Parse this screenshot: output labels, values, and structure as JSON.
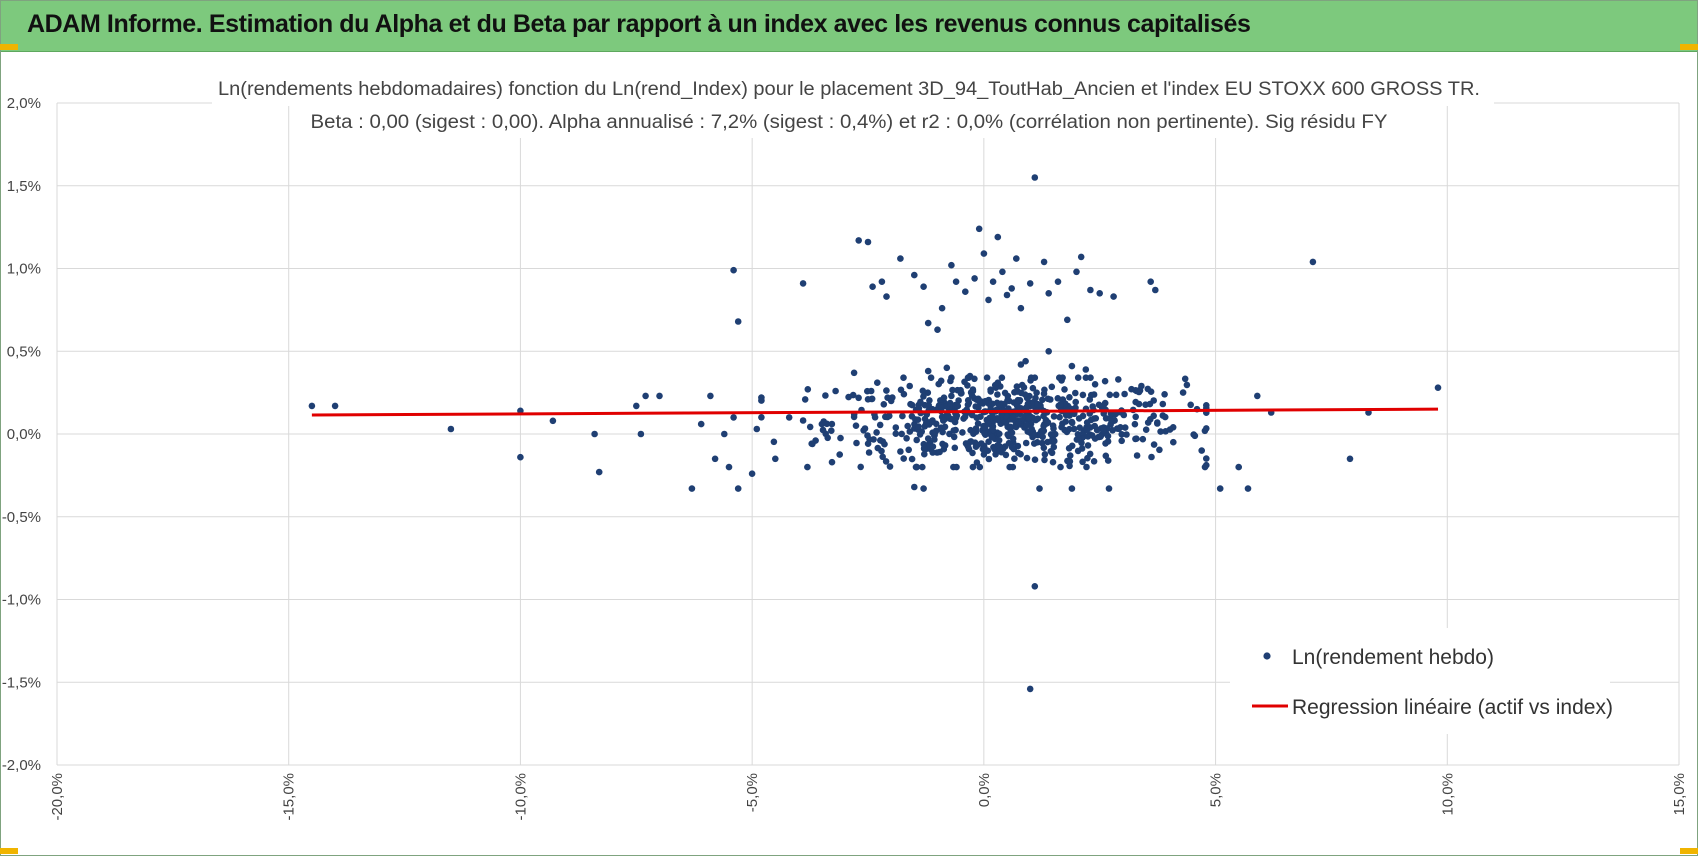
{
  "header": {
    "title": "ADAM Informe. Estimation du Alpha et du Beta par rapport à un index avec les revenus connus capitalisés"
  },
  "colors": {
    "title_bar": "#7dc97d",
    "point": "#1f3f73",
    "regression": "#e00000",
    "grid": "#d9d9d9",
    "corner": "#f0b400"
  },
  "chart_data": {
    "type": "scatter",
    "title_line1": "Ln(rendements hebdomadaires) fonction du Ln(rend_Index) pour le placement 3D_94_ToutHab_Ancien et l'index EU STOXX 600 GROSS TR.",
    "title_line2": "Beta : 0,00 (sigest : 0,00). Alpha annualisé : 7,2% (sigest : 0,4%) et r2 : 0,0% (corrélation non pertinente). Sig résidu FY",
    "xlim": [
      -20,
      15
    ],
    "ylim": [
      -2,
      2
    ],
    "x_ticks": [
      -20,
      -15,
      -10,
      -5,
      0,
      5,
      10,
      15
    ],
    "x_tick_labels": [
      "-20,0%",
      "-15,0%",
      "-10,0%",
      "-5,0%",
      "0,0%",
      "5,0%",
      "10,0%",
      "15,0%"
    ],
    "y_ticks": [
      2,
      1.5,
      1,
      0.5,
      0,
      -0.5,
      -1,
      -1.5,
      -2
    ],
    "y_tick_labels": [
      "2,0%",
      "1,5%",
      "1,0%",
      "0,5%",
      "0,0%",
      "-0,5%",
      "-1,0%",
      "-1,5%",
      "-2,0%"
    ],
    "legend": {
      "placement": "bottom-right",
      "scatter_label": "Ln(rendement hebdo)",
      "line_label": "Regression linéaire (actif vs index)"
    },
    "series": [
      {
        "name": "Ln(rendement hebdo)",
        "kind": "scatter",
        "points": [
          [
            -14.5,
            0.17
          ],
          [
            -14.0,
            0.17
          ],
          [
            -11.5,
            0.03
          ],
          [
            -10.0,
            -0.14
          ],
          [
            -10.0,
            0.14
          ],
          [
            -9.3,
            0.08
          ],
          [
            -8.4,
            0.0
          ],
          [
            -8.3,
            -0.23
          ],
          [
            -7.5,
            0.17
          ],
          [
            -7.4,
            0.0
          ],
          [
            -7.3,
            0.23
          ],
          [
            -7.0,
            0.23
          ],
          [
            -6.3,
            -0.33
          ],
          [
            -6.1,
            0.06
          ],
          [
            -5.9,
            0.23
          ],
          [
            -5.8,
            -0.15
          ],
          [
            -5.6,
            0.0
          ],
          [
            -5.5,
            -0.2
          ],
          [
            -5.4,
            0.1
          ],
          [
            -5.4,
            0.99
          ],
          [
            -5.3,
            0.68
          ],
          [
            -5.3,
            -0.33
          ],
          [
            -5.0,
            -0.24
          ],
          [
            -4.9,
            0.03
          ],
          [
            -4.5,
            -0.15
          ],
          [
            -4.2,
            0.1
          ],
          [
            -3.9,
            0.91
          ],
          [
            -3.8,
            0.27
          ],
          [
            -3.7,
            -0.06
          ],
          [
            -2.7,
            1.17
          ],
          [
            -2.5,
            1.16
          ],
          [
            -2.4,
            0.89
          ],
          [
            -2.2,
            0.92
          ],
          [
            -2.1,
            0.83
          ],
          [
            -1.8,
            1.06
          ],
          [
            -1.5,
            0.96
          ],
          [
            -1.3,
            0.89
          ],
          [
            -1.2,
            0.67
          ],
          [
            -1.0,
            0.63
          ],
          [
            -0.9,
            0.76
          ],
          [
            -0.7,
            1.02
          ],
          [
            -0.6,
            0.92
          ],
          [
            -0.4,
            0.86
          ],
          [
            -0.2,
            0.94
          ],
          [
            -0.1,
            1.24
          ],
          [
            0.0,
            1.09
          ],
          [
            0.1,
            0.81
          ],
          [
            0.2,
            0.92
          ],
          [
            0.3,
            1.19
          ],
          [
            0.4,
            0.98
          ],
          [
            0.5,
            0.84
          ],
          [
            0.6,
            0.88
          ],
          [
            0.7,
            1.06
          ],
          [
            0.8,
            0.76
          ],
          [
            1.0,
            0.91
          ],
          [
            1.1,
            1.55
          ],
          [
            1.3,
            1.04
          ],
          [
            1.4,
            0.85
          ],
          [
            1.6,
            0.92
          ],
          [
            1.8,
            0.69
          ],
          [
            2.0,
            0.98
          ],
          [
            2.1,
            1.07
          ],
          [
            2.3,
            0.87
          ],
          [
            2.5,
            0.85
          ],
          [
            2.8,
            0.83
          ],
          [
            3.6,
            0.92
          ],
          [
            3.7,
            0.87
          ],
          [
            7.1,
            1.04
          ],
          [
            1.1,
            -0.92
          ],
          [
            1.0,
            -1.54
          ],
          [
            -1.5,
            -0.32
          ],
          [
            -1.3,
            -0.33
          ],
          [
            1.2,
            -0.33
          ],
          [
            1.9,
            -0.33
          ],
          [
            2.7,
            -0.33
          ],
          [
            5.1,
            -0.33
          ],
          [
            5.7,
            -0.33
          ],
          [
            5.5,
            -0.2
          ],
          [
            4.7,
            -0.1
          ],
          [
            5.9,
            0.23
          ],
          [
            6.2,
            0.13
          ],
          [
            7.9,
            -0.15
          ],
          [
            8.3,
            0.13
          ],
          [
            9.8,
            0.28
          ],
          [
            4.6,
            0.15
          ],
          [
            4.3,
            0.25
          ],
          [
            3.9,
            0.24
          ],
          [
            -3.2,
            0.26
          ],
          [
            -2.8,
            0.37
          ],
          [
            -2.0,
            0.2
          ],
          [
            -1.2,
            0.38
          ],
          [
            -0.8,
            0.4
          ],
          [
            0.8,
            0.42
          ],
          [
            1.4,
            0.5
          ],
          [
            2.2,
            0.39
          ],
          [
            2.9,
            0.33
          ],
          [
            3.4,
            0.29
          ],
          [
            -0.3,
            0.35
          ],
          [
            0.3,
            0.31
          ],
          [
            1.7,
            0.34
          ],
          [
            2.4,
            0.3
          ],
          [
            -1.6,
            0.29
          ],
          [
            -2.3,
            0.31
          ],
          [
            0.9,
            0.44
          ],
          [
            1.9,
            0.41
          ]
        ]
      },
      {
        "name": "Regression linéaire (actif vs index)",
        "kind": "line",
        "x": [
          -14.5,
          9.8
        ],
        "y": [
          0.115,
          0.15
        ]
      }
    ],
    "dense_cluster": {
      "center": [
        0.5,
        0.07
      ],
      "spread": [
        1.9,
        0.13
      ],
      "count": 650
    },
    "grid": true
  }
}
